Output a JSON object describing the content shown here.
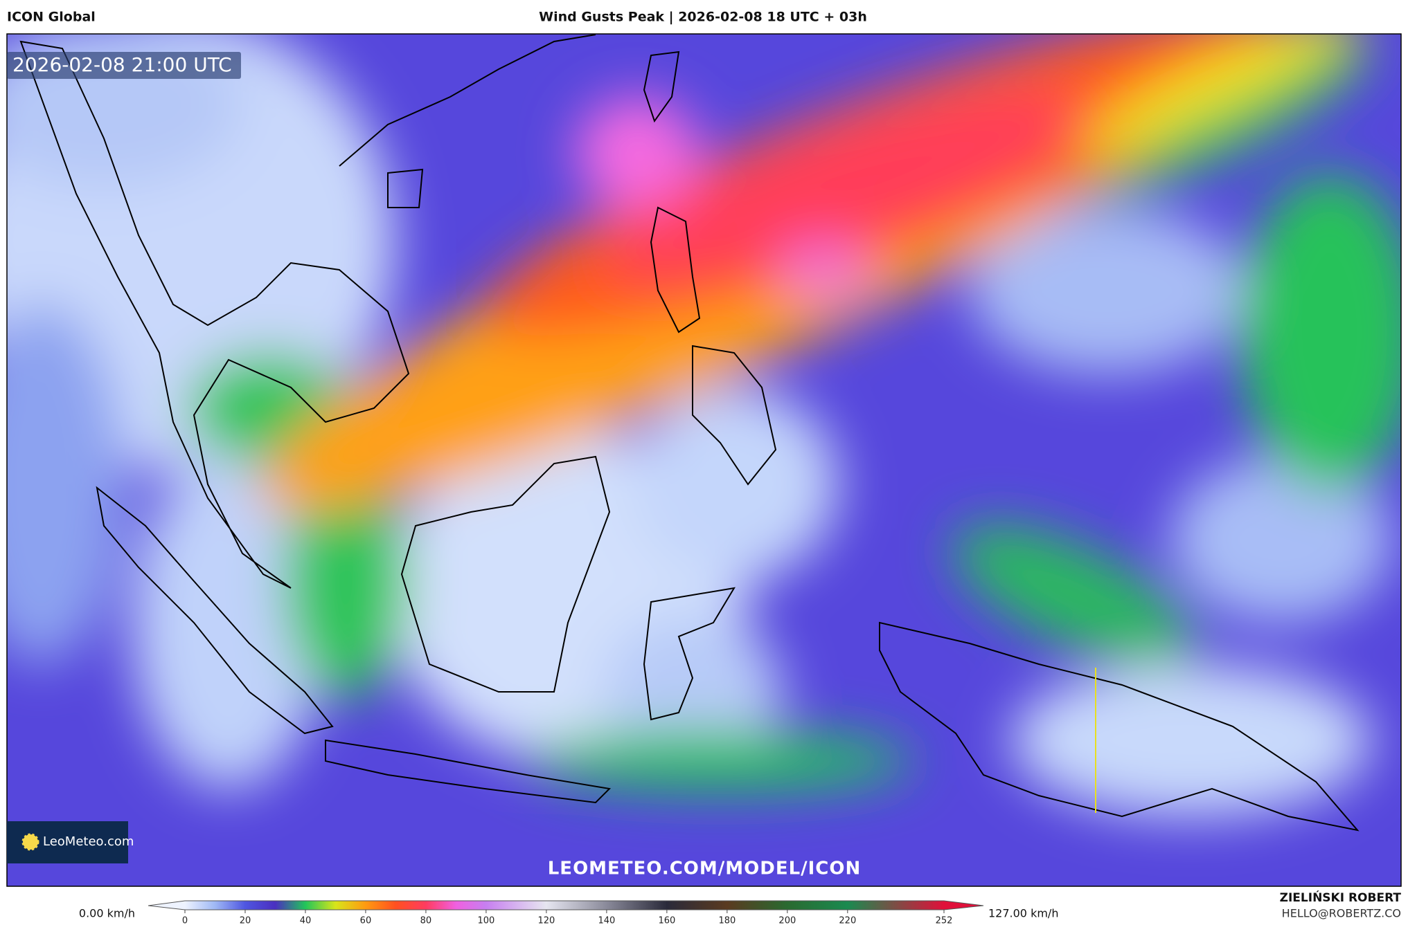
{
  "header": {
    "model": "ICON Global",
    "title": "Wind Gusts Peak | 2026-02-08 18 UTC + 03h"
  },
  "map": {
    "valid_time": "2026-02-08 21:00 UTC",
    "logo": "LeoMeteo.com",
    "watermark": "LEOMETEO.COM/MODEL/ICON"
  },
  "colorbar": {
    "min_label": "0.00 km/h",
    "max_label": "127.00 km/h",
    "lim": [
      0,
      252
    ],
    "ticks": [
      0,
      20,
      40,
      60,
      80,
      100,
      120,
      140,
      160,
      180,
      200,
      220,
      252
    ],
    "stops": [
      {
        "value": 0,
        "color": "#eef3ff"
      },
      {
        "value": 10,
        "color": "#9fb8f5"
      },
      {
        "value": 20,
        "color": "#4f56e0"
      },
      {
        "value": 30,
        "color": "#4a2fc0"
      },
      {
        "value": 40,
        "color": "#22c55a"
      },
      {
        "value": 50,
        "color": "#d8e51a"
      },
      {
        "value": 60,
        "color": "#ff9a10"
      },
      {
        "value": 70,
        "color": "#ff5020"
      },
      {
        "value": 80,
        "color": "#ff3c60"
      },
      {
        "value": 90,
        "color": "#f060e0"
      },
      {
        "value": 100,
        "color": "#c77ff0"
      },
      {
        "value": 120,
        "color": "#e6e6f0"
      },
      {
        "value": 140,
        "color": "#8a8a9a"
      },
      {
        "value": 160,
        "color": "#2a2a3a"
      },
      {
        "value": 180,
        "color": "#5a3a20"
      },
      {
        "value": 200,
        "color": "#2a6a30"
      },
      {
        "value": 220,
        "color": "#1a8a50"
      },
      {
        "value": 252,
        "color": "#e0103a"
      }
    ]
  },
  "credits": {
    "author": "ZIELIŃSKI ROBERT",
    "email": "HELLO@ROBERTZ.CO"
  }
}
